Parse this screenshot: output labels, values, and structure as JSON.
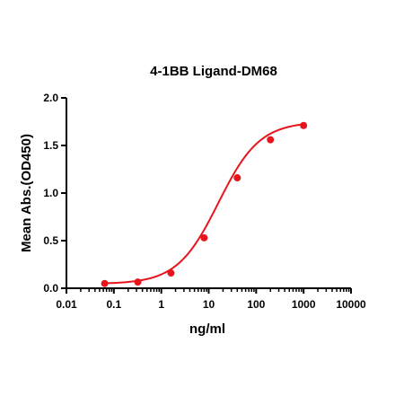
{
  "chart_data": {
    "type": "scatter",
    "title": "4-1BB Ligand-DM68",
    "xlabel": "ng/ml",
    "ylabel": "Mean Abs.(OD450)",
    "x_scale": "log",
    "xlim": [
      0.01,
      10000
    ],
    "ylim": [
      0.0,
      2.0
    ],
    "x_ticks": [
      "0.01",
      "0.1",
      "1",
      "10",
      "100",
      "1000",
      "10000"
    ],
    "x_tick_values": [
      0.01,
      0.1,
      1,
      10,
      100,
      1000,
      10000
    ],
    "y_ticks": [
      "0.0",
      "0.5",
      "1.0",
      "1.5",
      "2.0"
    ],
    "y_tick_values": [
      0.0,
      0.5,
      1.0,
      1.5,
      2.0
    ],
    "color": "#e8141b",
    "grid": false,
    "series": [
      {
        "x": [
          0.064,
          0.32,
          1.6,
          8,
          40,
          200,
          1000
        ],
        "y": [
          0.05,
          0.065,
          0.16,
          0.53,
          1.16,
          1.56,
          1.71
        ]
      }
    ],
    "fit_curve": "four-parameter logistic"
  }
}
